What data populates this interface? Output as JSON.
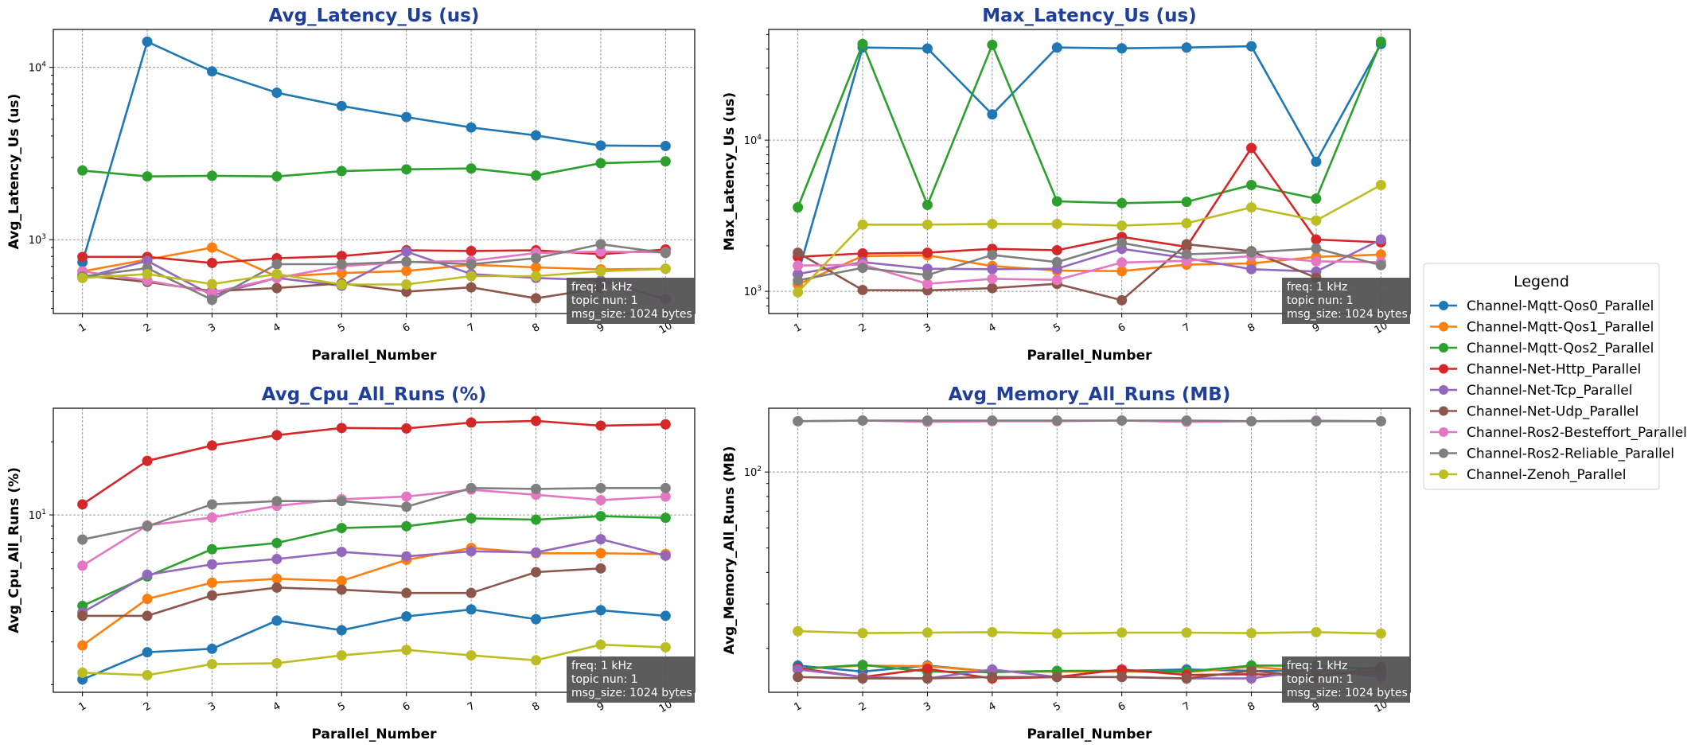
{
  "x_values": [
    1,
    2,
    3,
    4,
    5,
    6,
    7,
    8,
    9,
    10
  ],
  "series_names": [
    "Channel-Mqtt-Qos0_Parallel",
    "Channel-Mqtt-Qos1_Parallel",
    "Channel-Mqtt-Qos2_Parallel",
    "Channel-Net-Http_Parallel",
    "Channel-Net-Tcp_Parallel",
    "Channel-Net-Udp_Parallel",
    "Channel-Ros2-Besteffort_Parallel",
    "Channel-Ros2-Reliable_Parallel",
    "Channel-Zenoh_Parallel"
  ],
  "colors": [
    "#1f77b4",
    "#ff7f0e",
    "#2ca02c",
    "#d62728",
    "#9467bd",
    "#8c564b",
    "#e377c2",
    "#7f7f7f",
    "#bcbd22"
  ],
  "legend": {
    "title": "Legend",
    "placement": "center-right"
  },
  "annotation": [
    "freq: 1 kHz",
    "topic nun: 1",
    "msg_size: 1024 bytes"
  ],
  "chart_data": [
    {
      "type": "line",
      "title": "Avg_Latency_Us  (us)",
      "xlabel": "Parallel_Number",
      "ylabel": "Avg_Latency_Us (us)",
      "yscale": "log",
      "ylim": [
        373,
        16600
      ],
      "yticks": [
        1000,
        10000
      ],
      "grid": true,
      "series": [
        {
          "name": "Channel-Mqtt-Qos0_Parallel",
          "values": [
            741,
            14100,
            9480,
            7130,
            5970,
            5150,
            4480,
            4030,
            3520,
            3500
          ]
        },
        {
          "name": "Channel-Mqtt-Qos1_Parallel",
          "values": [
            655,
            768,
            900,
            611,
            640,
            659,
            716,
            691,
            673,
            678
          ]
        },
        {
          "name": "Channel-Mqtt-Qos2_Parallel",
          "values": [
            2520,
            2330,
            2350,
            2330,
            2500,
            2560,
            2590,
            2360,
            2780,
            2850
          ]
        },
        {
          "name": "Channel-Net-Http_Parallel",
          "values": [
            795,
            795,
            733,
            781,
            804,
            868,
            860,
            868,
            824,
            878
          ]
        },
        {
          "name": "Channel-Net-Tcp_Parallel",
          "values": [
            600,
            754,
            476,
            600,
            540,
            853,
            632,
            600,
            580,
            452
          ]
        },
        {
          "name": "Channel-Net-Udp_Parallel",
          "values": [
            621,
            569,
            503,
            524,
            558,
            499,
            529,
            457,
            524,
            null
          ]
        },
        {
          "name": "Channel-Ros2-Besteffort_Parallel",
          "values": [
            655,
            580,
            494,
            600,
            703,
            741,
            754,
            838,
            853,
            845
          ]
        },
        {
          "name": "Channel-Ros2-Reliable_Parallel",
          "values": [
            611,
            684,
            448,
            721,
            721,
            746,
            721,
            781,
            942,
            838
          ]
        },
        {
          "name": "Channel-Zenoh_Parallel",
          "values": [
            600,
            632,
            553,
            632,
            550,
            550,
            615,
            615,
            655,
            678
          ]
        }
      ]
    },
    {
      "type": "line",
      "title": "Max_Latency_Us  (us)",
      "xlabel": "Parallel_Number",
      "ylabel": "Max_Latency_Us (us)",
      "yscale": "log",
      "ylim": [
        713,
        54000
      ],
      "yticks": [
        1000,
        10000
      ],
      "grid": true,
      "series": [
        {
          "name": "Channel-Mqtt-Qos0_Parallel",
          "values": [
            1300,
            41000,
            40400,
            14800,
            41000,
            40500,
            41000,
            41800,
            7200,
            43300
          ]
        },
        {
          "name": "Channel-Mqtt-Qos1_Parallel",
          "values": [
            1110,
            1710,
            1730,
            1470,
            1370,
            1360,
            1500,
            1530,
            1690,
            1750
          ]
        },
        {
          "name": "Channel-Mqtt-Qos2_Parallel",
          "values": [
            3590,
            43300,
            3730,
            42700,
            3940,
            3830,
            3910,
            5050,
            4100,
            44800
          ]
        },
        {
          "name": "Channel-Net-Http_Parallel",
          "values": [
            1690,
            1780,
            1800,
            1910,
            1870,
            2290,
            1970,
            8870,
            2200,
            2110
          ]
        },
        {
          "name": "Channel-Net-Tcp_Parallel",
          "values": [
            1300,
            1560,
            1410,
            1400,
            1410,
            1910,
            1660,
            1400,
            1350,
            2200
          ]
        },
        {
          "name": "Channel-Net-Udp_Parallel",
          "values": [
            1800,
            1020,
            1015,
            1050,
            1120,
            873,
            2050,
            1840,
            1230,
            null
          ]
        },
        {
          "name": "Channel-Ros2-Besteffort_Parallel",
          "values": [
            1480,
            1500,
            1120,
            1210,
            1190,
            1550,
            1590,
            1710,
            1580,
            1560
          ]
        },
        {
          "name": "Channel-Ros2-Reliable_Parallel",
          "values": [
            1180,
            1430,
            1280,
            1740,
            1560,
            2090,
            1760,
            1810,
            1920,
            1490
          ]
        },
        {
          "name": "Channel-Zenoh_Parallel",
          "values": [
            985,
            2760,
            2760,
            2790,
            2790,
            2720,
            2820,
            3590,
            2940,
            5050
          ]
        }
      ]
    },
    {
      "type": "line",
      "title": "Avg_Cpu_All_Runs  (%)",
      "xlabel": "Parallel_Number",
      "ylabel": "Avg_Cpu_All_Runs (%)",
      "yscale": "log",
      "ylim": [
        1.86,
        27.5
      ],
      "yticks": [
        10
      ],
      "grid": true,
      "series": [
        {
          "name": "Channel-Mqtt-Qos0_Parallel",
          "values": [
            2.1,
            2.72,
            2.81,
            3.67,
            3.35,
            3.82,
            4.08,
            3.72,
            4.05,
            3.84
          ]
        },
        {
          "name": "Channel-Mqtt-Qos1_Parallel",
          "values": [
            2.9,
            4.51,
            5.26,
            5.46,
            5.35,
            6.53,
            7.31,
            6.95,
            6.95,
            6.9
          ]
        },
        {
          "name": "Channel-Mqtt-Qos2_Parallel",
          "values": [
            4.22,
            5.58,
            7.22,
            7.66,
            8.83,
            8.98,
            9.68,
            9.56,
            9.88,
            9.73
          ]
        },
        {
          "name": "Channel-Net-Http_Parallel",
          "values": [
            11.05,
            16.7,
            19.3,
            21.3,
            22.8,
            22.7,
            24.0,
            24.4,
            23.3,
            23.6
          ]
        },
        {
          "name": "Channel-Net-Tcp_Parallel",
          "values": [
            3.96,
            5.67,
            6.26,
            6.58,
            7.04,
            6.75,
            7.08,
            7.0,
            7.94,
            6.79
          ]
        },
        {
          "name": "Channel-Net-Udp_Parallel",
          "values": [
            3.84,
            3.84,
            4.66,
            5.02,
            4.92,
            4.77,
            4.77,
            5.81,
            6.02,
            null
          ]
        },
        {
          "name": "Channel-Ros2-Besteffort_Parallel",
          "values": [
            6.18,
            9.05,
            9.75,
            10.9,
            11.6,
            11.9,
            12.7,
            12.1,
            11.5,
            11.9
          ]
        },
        {
          "name": "Channel-Ros2-Reliable_Parallel",
          "values": [
            7.92,
            8.98,
            11.05,
            11.4,
            11.4,
            10.8,
            12.9,
            12.8,
            12.9,
            12.9
          ]
        },
        {
          "name": "Channel-Zenoh_Parallel",
          "values": [
            2.24,
            2.19,
            2.43,
            2.45,
            2.64,
            2.78,
            2.64,
            2.52,
            2.92,
            2.85
          ]
        }
      ]
    },
    {
      "type": "line",
      "title": "Avg_Memory_All_Runs  (MB)",
      "xlabel": "Parallel_Number",
      "ylabel": "Avg_Memory_All_Runs (MB)",
      "yscale": "log",
      "ylim": [
        13.4,
        179
      ],
      "yticks": [
        100
      ],
      "grid": true,
      "series": [
        {
          "name": "Channel-Mqtt-Qos0_Parallel",
          "values": [
            17.1,
            16.2,
            17.1,
            16.2,
            16.2,
            16.3,
            16.5,
            16.3,
            16.3,
            15.8
          ]
        },
        {
          "name": "Channel-Mqtt-Qos1_Parallel",
          "values": [
            16.6,
            17.1,
            17.0,
            16.2,
            16.2,
            16.2,
            16.1,
            16.9,
            16.2,
            15.9
          ]
        },
        {
          "name": "Channel-Mqtt-Qos2_Parallel",
          "values": [
            16.6,
            17.2,
            16.2,
            16.1,
            16.3,
            16.3,
            16.2,
            17.1,
            17.1,
            16.5
          ]
        },
        {
          "name": "Channel-Net-Http_Parallel",
          "values": [
            16.7,
            15.4,
            16.6,
            15.2,
            15.4,
            16.5,
            15.7,
            15.8,
            15.6,
            16.3
          ]
        },
        {
          "name": "Channel-Net-Tcp_Parallel",
          "values": [
            16.5,
            15.4,
            15.2,
            16.5,
            15.4,
            15.4,
            15.2,
            15.2,
            16.5,
            15.4
          ]
        },
        {
          "name": "Channel-Net-Udp_Parallel",
          "values": [
            15.4,
            15.2,
            15.2,
            15.4,
            15.4,
            15.4,
            15.2,
            16.3,
            15.4,
            16.9
          ]
        },
        {
          "name": "Channel-Ros2-Besteffort_Parallel",
          "values": [
            159,
            160,
            158,
            159,
            159,
            160,
            158,
            159,
            160,
            159
          ]
        },
        {
          "name": "Channel-Ros2-Reliable_Parallel",
          "values": [
            159,
            160,
            160,
            160,
            160,
            160,
            160,
            159,
            159,
            159
          ]
        },
        {
          "name": "Channel-Zenoh_Parallel",
          "values": [
            23.4,
            23.0,
            23.1,
            23.2,
            22.9,
            23.1,
            23.1,
            23.0,
            23.2,
            22.9
          ]
        }
      ]
    }
  ]
}
